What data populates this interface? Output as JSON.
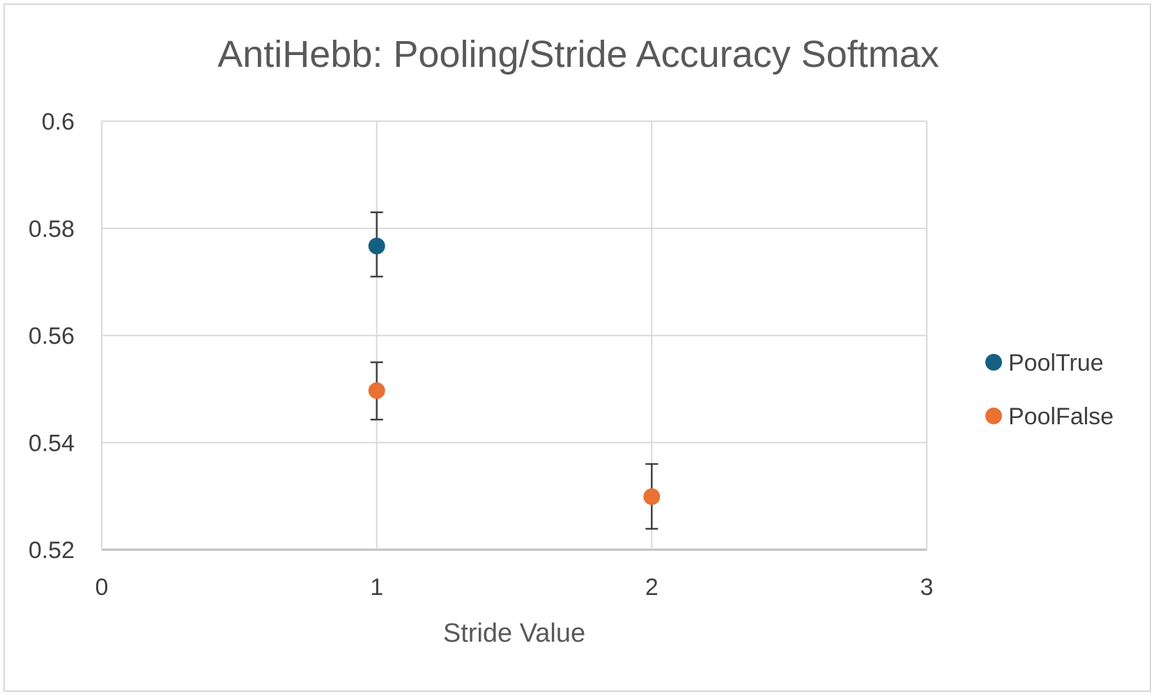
{
  "chart_data": {
    "type": "scatter",
    "title": "AntiHebb: Pooling/Stride Accuracy Softmax",
    "xlabel": "Stride Value",
    "ylabel": "",
    "xlim": [
      0,
      3
    ],
    "ylim": [
      0.52,
      0.6
    ],
    "x_ticks": [
      "0",
      "1",
      "2",
      "3"
    ],
    "y_ticks": [
      "0.52",
      "0.54",
      "0.56",
      "0.58",
      "0.6"
    ],
    "grid": true,
    "legend_position": "right",
    "series": [
      {
        "name": "PoolTrue",
        "color": "#156082",
        "points": [
          {
            "x": 1,
            "y": 0.5767,
            "err_low": 0.571,
            "err_high": 0.583
          }
        ]
      },
      {
        "name": "PoolFalse",
        "color": "#E97132",
        "points": [
          {
            "x": 1,
            "y": 0.5497,
            "err_low": 0.5443,
            "err_high": 0.555
          },
          {
            "x": 2,
            "y": 0.5299,
            "err_low": 0.5239,
            "err_high": 0.536
          }
        ]
      }
    ]
  }
}
